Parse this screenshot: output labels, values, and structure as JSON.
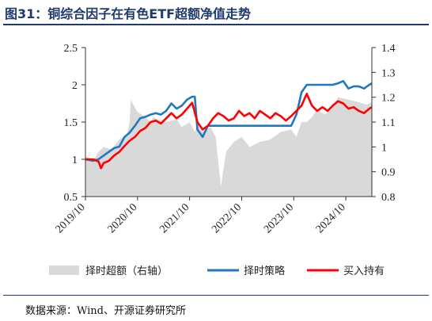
{
  "title": "图31：铜综合因子在有色ETF超额净值走势",
  "source": "数据来源：Wind、开源证券研究所",
  "chart_data": {
    "type": "line",
    "left_axis": {
      "ticks": [
        "0.5",
        "1",
        "1.5",
        "2",
        "2.5"
      ],
      "range": [
        0.5,
        2.5
      ]
    },
    "right_axis": {
      "ticks": [
        "0.8",
        "0.9",
        "1",
        "1.1",
        "1.2",
        "1.3",
        "1.4"
      ],
      "range": [
        0.8,
        1.4
      ]
    },
    "x_ticks": [
      "2019/10",
      "2020/10",
      "2021/10",
      "2022/10",
      "2023/10",
      "2024/10"
    ],
    "x_range": [
      2019.75,
      2025.25
    ],
    "legend": [
      {
        "name": "择时超额（右轴）",
        "color": "#d9d9d9",
        "kind": "area"
      },
      {
        "name": "择时策略",
        "color": "#1f78c1",
        "kind": "line"
      },
      {
        "name": "买入持有",
        "color": "#ff0000",
        "kind": "line"
      }
    ],
    "series": [
      {
        "name": "择时超额（右轴）",
        "axis": "right",
        "color": "#d9d9d9",
        "x": [
          2019.75,
          2019.92,
          2020.0,
          2020.1,
          2020.25,
          2020.4,
          2020.55,
          2020.6,
          2020.62,
          2020.75,
          2020.9,
          2021.0,
          2021.05,
          2021.15,
          2021.3,
          2021.5,
          2021.6,
          2021.75,
          2021.85,
          2021.9,
          2022.0,
          2022.15,
          2022.25,
          2022.35,
          2022.45,
          2022.6,
          2022.75,
          2022.9,
          2023.1,
          2023.3,
          2023.5,
          2023.7,
          2023.8,
          2023.9,
          2024.0,
          2024.1,
          2024.2,
          2024.35,
          2024.5,
          2024.6,
          2024.8,
          2025.0,
          2025.15,
          2025.25
        ],
        "values": [
          0.96,
          0.95,
          0.98,
          1.0,
          0.99,
          1.03,
          1.05,
          1.1,
          1.19,
          1.14,
          1.12,
          1.1,
          1.12,
          1.11,
          1.1,
          1.11,
          1.08,
          1.1,
          1.06,
          1.09,
          1.06,
          1.08,
          1.04,
          0.84,
          0.98,
          1.02,
          1.04,
          1.0,
          1.02,
          1.03,
          1.06,
          1.07,
          1.04,
          1.1,
          1.1,
          1.12,
          1.15,
          1.13,
          1.16,
          1.2,
          1.19,
          1.18,
          1.17,
          1.18
        ]
      },
      {
        "name": "择时策略",
        "axis": "left",
        "color": "#1f78c1",
        "x": [
          2019.75,
          2019.9,
          2020.0,
          2020.1,
          2020.2,
          2020.3,
          2020.4,
          2020.5,
          2020.6,
          2020.7,
          2020.8,
          2020.9,
          2021.0,
          2021.1,
          2021.2,
          2021.3,
          2021.4,
          2021.5,
          2021.6,
          2021.7,
          2021.8,
          2021.85,
          2021.9,
          2022.0,
          2022.1,
          2022.2,
          2022.3,
          2022.4,
          2022.5,
          2022.6,
          2022.7,
          2022.8,
          2022.9,
          2023.0,
          2023.2,
          2023.4,
          2023.5,
          2023.6,
          2023.7,
          2023.8,
          2023.85,
          2023.9,
          2024.0,
          2024.1,
          2024.2,
          2024.4,
          2024.5,
          2024.6,
          2024.7,
          2024.8,
          2024.9,
          2025.0,
          2025.1,
          2025.2,
          2025.25
        ],
        "values": [
          1.0,
          0.98,
          1.0,
          1.05,
          1.1,
          1.15,
          1.17,
          1.3,
          1.36,
          1.45,
          1.55,
          1.57,
          1.6,
          1.62,
          1.6,
          1.65,
          1.75,
          1.68,
          1.72,
          1.8,
          1.84,
          1.84,
          1.4,
          1.3,
          1.45,
          1.45,
          1.45,
          1.45,
          1.45,
          1.45,
          1.45,
          1.45,
          1.45,
          1.45,
          1.45,
          1.45,
          1.45,
          1.45,
          1.45,
          1.6,
          1.75,
          1.9,
          2.0,
          2.0,
          2.0,
          2.0,
          2.0,
          2.02,
          2.05,
          1.95,
          1.98,
          1.98,
          1.95,
          2.0,
          2.02
        ]
      },
      {
        "name": "买入持有",
        "axis": "left",
        "color": "#ff0000",
        "x": [
          2019.75,
          2019.9,
          2020.0,
          2020.05,
          2020.1,
          2020.2,
          2020.3,
          2020.4,
          2020.5,
          2020.6,
          2020.7,
          2020.8,
          2020.9,
          2021.0,
          2021.1,
          2021.2,
          2021.3,
          2021.4,
          2021.5,
          2021.6,
          2021.7,
          2021.8,
          2021.9,
          2022.0,
          2022.1,
          2022.2,
          2022.3,
          2022.4,
          2022.5,
          2022.6,
          2022.7,
          2022.8,
          2022.9,
          2023.0,
          2023.1,
          2023.2,
          2023.3,
          2023.4,
          2023.5,
          2023.6,
          2023.7,
          2023.8,
          2023.9,
          2024.0,
          2024.1,
          2024.2,
          2024.3,
          2024.4,
          2024.5,
          2024.6,
          2024.7,
          2024.8,
          2024.9,
          2025.0,
          2025.1,
          2025.2,
          2025.25
        ],
        "values": [
          1.0,
          1.0,
          0.97,
          0.88,
          0.95,
          0.98,
          1.05,
          1.1,
          1.18,
          1.25,
          1.3,
          1.38,
          1.42,
          1.5,
          1.52,
          1.48,
          1.55,
          1.62,
          1.55,
          1.6,
          1.68,
          1.76,
          1.5,
          1.4,
          1.45,
          1.55,
          1.62,
          1.58,
          1.52,
          1.55,
          1.65,
          1.58,
          1.62,
          1.55,
          1.65,
          1.6,
          1.55,
          1.62,
          1.58,
          1.52,
          1.58,
          1.65,
          1.72,
          1.88,
          1.72,
          1.65,
          1.7,
          1.65,
          1.72,
          1.78,
          1.75,
          1.68,
          1.7,
          1.65,
          1.62,
          1.68,
          1.7
        ]
      }
    ]
  }
}
